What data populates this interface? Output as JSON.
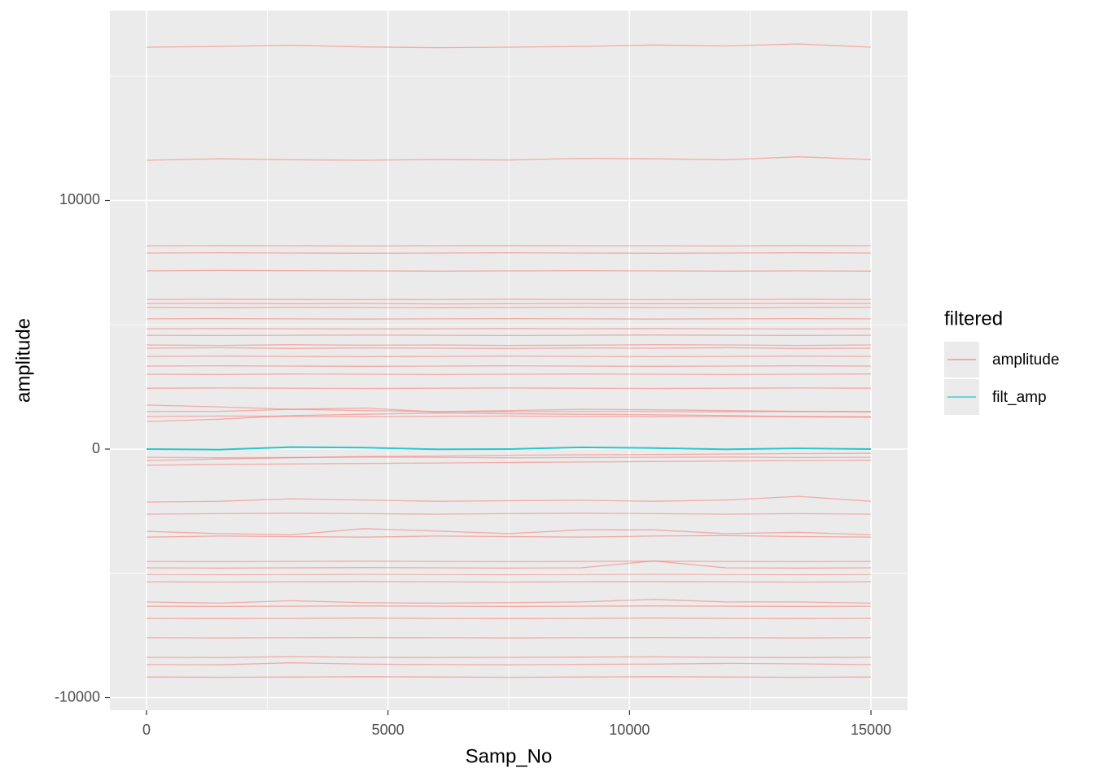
{
  "chart_data": {
    "type": "line",
    "xlabel": "Samp_No",
    "ylabel": "amplitude",
    "legend_title": "filtered",
    "legend": "right",
    "grid": true,
    "xlim": [
      -758,
      15758
    ],
    "ylim": [
      -10507,
      17643
    ],
    "xticks": [
      0,
      5000,
      10000,
      15000
    ],
    "yticks": [
      -10000,
      0,
      10000
    ],
    "x": [
      0,
      1500,
      3000,
      4500,
      6000,
      7500,
      9000,
      10500,
      12000,
      13500,
      15000
    ],
    "series": [
      {
        "name": "amplitude",
        "color": "#F8766D",
        "traces": [
          [
            16170,
            16200,
            16250,
            16180,
            16150,
            16170,
            16200,
            16260,
            16220,
            16300,
            16170
          ],
          [
            11620,
            11680,
            11640,
            11620,
            11650,
            11630,
            11700,
            11680,
            11640,
            11760,
            11650
          ],
          [
            8180,
            8190,
            8180,
            8170,
            8180,
            8190,
            8180,
            8180,
            8170,
            8190,
            8180
          ],
          [
            7890,
            7900,
            7890,
            7880,
            7890,
            7900,
            7890,
            7880,
            7890,
            7900,
            7890
          ],
          [
            7170,
            7190,
            7180,
            7170,
            7160,
            7170,
            7180,
            7170,
            7160,
            7170,
            7160
          ],
          [
            6020,
            6030,
            6020,
            6010,
            6020,
            6030,
            6020,
            6010,
            6020,
            6030,
            6020
          ],
          [
            5860,
            5870,
            5850,
            5860,
            5840,
            5850,
            5860,
            5850,
            5860,
            5870,
            5860
          ],
          [
            5700,
            5690,
            5710,
            5700,
            5690,
            5700,
            5710,
            5700,
            5690,
            5700,
            5710
          ],
          [
            5240,
            5250,
            5240,
            5230,
            5240,
            5250,
            5240,
            5230,
            5240,
            5250,
            5240
          ],
          [
            4840,
            4850,
            4840,
            4830,
            4840,
            4850,
            4840,
            4850,
            4840,
            4830,
            4840
          ],
          [
            4580,
            4570,
            4580,
            4590,
            4580,
            4570,
            4580,
            4590,
            4580,
            4570,
            4580
          ],
          [
            4190,
            4170,
            4200,
            4180,
            4190,
            4170,
            4180,
            4200,
            4190,
            4170,
            4190
          ],
          [
            4060,
            4080,
            4050,
            4070,
            4060,
            4050,
            4070,
            4060,
            4080,
            4050,
            4060
          ],
          [
            3730,
            3740,
            3730,
            3720,
            3730,
            3740,
            3730,
            3720,
            3730,
            3740,
            3730
          ],
          [
            3340,
            3350,
            3340,
            3330,
            3340,
            3350,
            3340,
            3330,
            3340,
            3350,
            3340
          ],
          [
            3010,
            3000,
            3020,
            3010,
            3000,
            3010,
            3020,
            3010,
            3000,
            3010,
            3020
          ],
          [
            2450,
            2460,
            2450,
            2440,
            2450,
            2460,
            2450,
            2440,
            2450,
            2460,
            2450
          ],
          [
            1770,
            1700,
            1600,
            1650,
            1500,
            1550,
            1600,
            1580,
            1550,
            1520,
            1500
          ],
          [
            1510,
            1520,
            1600,
            1550,
            1510,
            1500,
            1520,
            1510,
            1500,
            1510,
            1510
          ],
          [
            1310,
            1330,
            1320,
            1300,
            1320,
            1330,
            1310,
            1300,
            1320,
            1310,
            1300
          ],
          [
            1110,
            1200,
            1350,
            1400,
            1450,
            1420,
            1400,
            1380,
            1350,
            1300,
            1280
          ],
          [
            -330,
            -350,
            -340,
            -320,
            -330,
            -350,
            -340,
            -330,
            -320,
            -340,
            -330
          ],
          [
            -460,
            -400,
            -350,
            -300,
            -280,
            -250,
            -230,
            -220,
            -200,
            -180,
            -170
          ],
          [
            -650,
            -620,
            -600,
            -580,
            -560,
            -540,
            -520,
            -500,
            -480,
            -460,
            -450
          ],
          [
            -2130,
            -2100,
            -2000,
            -2050,
            -2100,
            -2080,
            -2060,
            -2100,
            -2050,
            -1900,
            -2100
          ],
          [
            -2620,
            -2600,
            -2580,
            -2600,
            -2620,
            -2600,
            -2580,
            -2600,
            -2620,
            -2600,
            -2620
          ],
          [
            -3310,
            -3400,
            -3450,
            -3200,
            -3300,
            -3400,
            -3250,
            -3250,
            -3400,
            -3350,
            -3450
          ],
          [
            -3540,
            -3500,
            -3520,
            -3540,
            -3500,
            -3520,
            -3540,
            -3500,
            -3480,
            -3520,
            -3540
          ],
          [
            -4520,
            -4530,
            -4520,
            -4510,
            -4520,
            -4530,
            -4520,
            -4510,
            -4520,
            -4530,
            -4520
          ],
          [
            -4780,
            -4790,
            -4780,
            -4770,
            -4780,
            -4790,
            -4780,
            -4500,
            -4780,
            -4790,
            -4780
          ],
          [
            -5040,
            -5050,
            -5040,
            -5030,
            -5040,
            -5050,
            -5040,
            -5030,
            -5040,
            -5050,
            -5040
          ],
          [
            -5340,
            -5350,
            -5340,
            -5330,
            -5340,
            -5350,
            -5340,
            -5330,
            -5340,
            -5350,
            -5340
          ],
          [
            -6150,
            -6200,
            -6100,
            -6180,
            -6200,
            -6180,
            -6150,
            -6050,
            -6150,
            -6150,
            -6200
          ],
          [
            -6320,
            -6330,
            -6320,
            -6310,
            -6320,
            -6330,
            -6320,
            -6310,
            -6320,
            -6330,
            -6320
          ],
          [
            -6810,
            -6820,
            -6810,
            -6800,
            -6810,
            -6820,
            -6810,
            -6800,
            -6810,
            -6820,
            -6810
          ],
          [
            -7590,
            -7600,
            -7590,
            -7580,
            -7590,
            -7600,
            -7590,
            -7580,
            -7590,
            -7600,
            -7590
          ],
          [
            -8380,
            -8390,
            -8350,
            -8380,
            -8390,
            -8380,
            -8370,
            -8360,
            -8380,
            -8390,
            -8380
          ],
          [
            -8670,
            -8680,
            -8600,
            -8650,
            -8670,
            -8680,
            -8660,
            -8650,
            -8620,
            -8640,
            -8670
          ],
          [
            -9170,
            -9180,
            -9170,
            -9160,
            -9170,
            -9180,
            -9170,
            -9160,
            -9170,
            -9180,
            -9170
          ]
        ]
      },
      {
        "name": "filt_amp",
        "color": "#00BFC4",
        "traces": [
          [
            0,
            -20,
            80,
            60,
            -10,
            0,
            70,
            40,
            -10,
            30,
            0
          ]
        ]
      }
    ]
  }
}
